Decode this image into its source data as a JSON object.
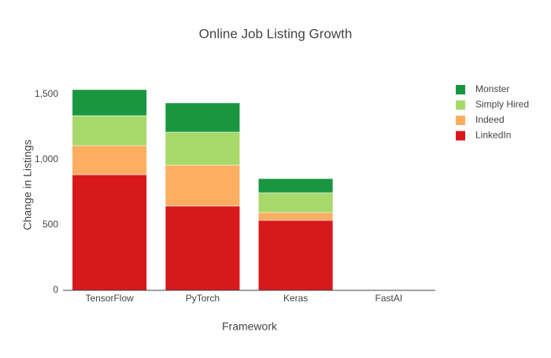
{
  "chart_data": {
    "type": "stacked_bar",
    "title": "Online Job Listing Growth",
    "x_label": "Framework",
    "y_label": "Change in Listings",
    "categories": [
      "TensorFlow",
      "PyTorch",
      "Keras",
      "FastAI"
    ],
    "series": [
      {
        "name": "LinkedIn",
        "color": "#d7191c",
        "values": [
          885,
          645,
          536,
          0
        ]
      },
      {
        "name": "Indeed",
        "color": "#fdae61",
        "values": [
          223,
          313,
          60,
          0
        ]
      },
      {
        "name": "Simply Hired",
        "color": "#a6d96a",
        "values": [
          229,
          253,
          151,
          0
        ]
      },
      {
        "name": "Monster",
        "color": "#1a9641",
        "values": [
          199,
          223,
          108,
          0
        ]
      }
    ],
    "ylim": [
      0,
      1620
    ],
    "yticks": [
      0,
      500,
      {
        "value": 1000,
        "label": "1,000"
      },
      {
        "value": 1500,
        "label": "1,500"
      }
    ],
    "grid": false,
    "legend": "top-right"
  }
}
